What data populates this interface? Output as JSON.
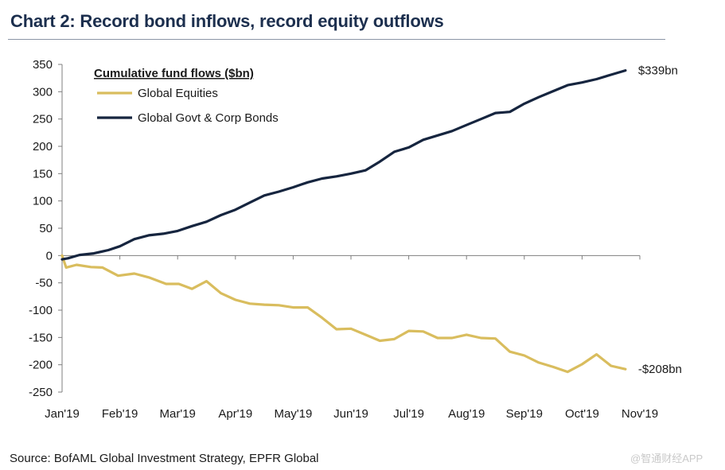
{
  "header": {
    "title": "Chart 2: Record bond inflows, record equity outflows"
  },
  "footer": {
    "source": "Source: BofAML Global Investment Strategy, EPFR Global",
    "watermark": "@智通财经APP"
  },
  "chart_data": {
    "type": "line",
    "title": "Chart 2: Record bond inflows, record equity outflows",
    "legend_title": "Cumulative fund flows ($bn)",
    "legend_position": "top-left",
    "x_ticks": [
      "Jan'19",
      "Feb'19",
      "Mar'19",
      "Apr'19",
      "May'19",
      "Jun'19",
      "Jul'19",
      "Aug'19",
      "Sep'19",
      "Oct'19",
      "Nov'19"
    ],
    "y_ticks": [
      350,
      300,
      250,
      200,
      150,
      100,
      50,
      0,
      -50,
      -100,
      -150,
      -200,
      -250
    ],
    "ylim": [
      -250,
      350
    ],
    "xlim": [
      0,
      10
    ],
    "grid": false,
    "series": [
      {
        "name": "Global Equities",
        "color": "#d9bd5e",
        "end_label": "-$208bn",
        "points": [
          [
            0,
            0
          ],
          [
            0.07,
            -22
          ],
          [
            0.25,
            -17
          ],
          [
            0.5,
            -21
          ],
          [
            0.7,
            -22
          ],
          [
            0.97,
            -37
          ],
          [
            1.25,
            -33
          ],
          [
            1.5,
            -40
          ],
          [
            1.8,
            -52
          ],
          [
            2.02,
            -52
          ],
          [
            2.25,
            -61
          ],
          [
            2.5,
            -47
          ],
          [
            2.75,
            -69
          ],
          [
            3.0,
            -81
          ],
          [
            3.25,
            -88
          ],
          [
            3.5,
            -90
          ],
          [
            3.75,
            -91
          ],
          [
            4.0,
            -95
          ],
          [
            4.25,
            -95
          ],
          [
            4.5,
            -114
          ],
          [
            4.75,
            -135
          ],
          [
            5.0,
            -134
          ],
          [
            5.25,
            -145
          ],
          [
            5.5,
            -156
          ],
          [
            5.75,
            -153
          ],
          [
            6.0,
            -138
          ],
          [
            6.25,
            -139
          ],
          [
            6.5,
            -151
          ],
          [
            6.75,
            -151
          ],
          [
            7.0,
            -145
          ],
          [
            7.25,
            -151
          ],
          [
            7.5,
            -152
          ],
          [
            7.75,
            -176
          ],
          [
            8.0,
            -183
          ],
          [
            8.25,
            -196
          ],
          [
            8.5,
            -204
          ],
          [
            8.75,
            -213
          ],
          [
            9.0,
            -199
          ],
          [
            9.25,
            -181
          ],
          [
            9.5,
            -202
          ],
          [
            9.75,
            -208
          ]
        ]
      },
      {
        "name": "Global Govt & Corp Bonds",
        "color": "#16253f",
        "end_label": "$339bn",
        "points": [
          [
            0,
            -7
          ],
          [
            0.1,
            -5
          ],
          [
            0.3,
            1
          ],
          [
            0.55,
            4
          ],
          [
            0.8,
            10
          ],
          [
            1.0,
            17
          ],
          [
            1.25,
            30
          ],
          [
            1.5,
            37
          ],
          [
            1.75,
            40
          ],
          [
            2.0,
            45
          ],
          [
            2.25,
            54
          ],
          [
            2.5,
            62
          ],
          [
            2.75,
            74
          ],
          [
            3.0,
            84
          ],
          [
            3.25,
            97
          ],
          [
            3.5,
            110
          ],
          [
            3.75,
            117
          ],
          [
            4.0,
            125
          ],
          [
            4.25,
            134
          ],
          [
            4.5,
            141
          ],
          [
            4.75,
            145
          ],
          [
            5.0,
            150
          ],
          [
            5.25,
            156
          ],
          [
            5.5,
            172
          ],
          [
            5.75,
            190
          ],
          [
            6.0,
            198
          ],
          [
            6.25,
            212
          ],
          [
            6.5,
            220
          ],
          [
            6.75,
            228
          ],
          [
            7.0,
            239
          ],
          [
            7.25,
            250
          ],
          [
            7.5,
            261
          ],
          [
            7.75,
            263
          ],
          [
            8.0,
            278
          ],
          [
            8.25,
            290
          ],
          [
            8.5,
            301
          ],
          [
            8.75,
            312
          ],
          [
            9.0,
            317
          ],
          [
            9.25,
            323
          ],
          [
            9.5,
            331
          ],
          [
            9.75,
            339
          ]
        ]
      }
    ]
  }
}
